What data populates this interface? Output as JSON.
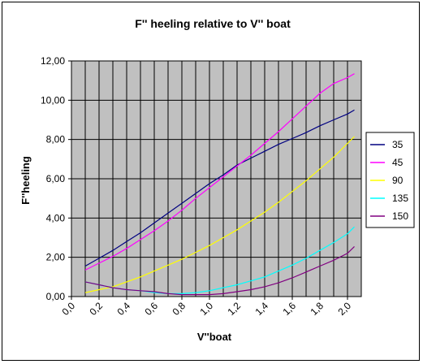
{
  "chart_data": {
    "type": "line",
    "title": "F'' heeling relative to V'' boat",
    "xlabel": "V''boat",
    "ylabel": "F''heeling",
    "xlim": [
      0.0,
      2.1
    ],
    "ylim": [
      0,
      12
    ],
    "x_ticks": [
      "0,0",
      "0,2",
      "0,4",
      "0,6",
      "0,8",
      "1,0",
      "1,2",
      "1,4",
      "1,6",
      "1,8",
      "2,0"
    ],
    "y_ticks": [
      "0,00",
      "2,00",
      "4,00",
      "6,00",
      "8,00",
      "10,00",
      "12,00"
    ],
    "grid": true,
    "plot_background": "#c0c0c0",
    "legend_placement": "right",
    "x": [
      0.1,
      0.2,
      0.3,
      0.4,
      0.5,
      0.6,
      0.7,
      0.8,
      0.9,
      1.0,
      1.1,
      1.2,
      1.3,
      1.4,
      1.5,
      1.6,
      1.7,
      1.8,
      1.9,
      2.0,
      2.05
    ],
    "series": [
      {
        "name": "35",
        "color": "#000080",
        "values": [
          1.55,
          1.95,
          2.35,
          2.8,
          3.25,
          3.75,
          4.25,
          4.75,
          5.25,
          5.75,
          6.2,
          6.7,
          7.05,
          7.4,
          7.75,
          8.05,
          8.35,
          8.7,
          9.0,
          9.3,
          9.5
        ]
      },
      {
        "name": "45",
        "color": "#ff00ff",
        "values": [
          1.35,
          1.7,
          2.05,
          2.45,
          2.9,
          3.35,
          3.85,
          4.4,
          5.0,
          5.55,
          6.1,
          6.65,
          7.2,
          7.8,
          8.4,
          9.05,
          9.7,
          10.35,
          10.85,
          11.15,
          11.35
        ]
      },
      {
        "name": "90",
        "color": "#ffff00",
        "values": [
          0.2,
          0.35,
          0.5,
          0.75,
          1.0,
          1.3,
          1.6,
          1.9,
          2.25,
          2.6,
          3.0,
          3.4,
          3.85,
          4.3,
          4.8,
          5.35,
          5.9,
          6.5,
          7.1,
          7.8,
          8.15
        ]
      },
      {
        "name": "135",
        "color": "#00ffff",
        "values": [
          0.75,
          0.6,
          0.45,
          0.35,
          0.3,
          0.2,
          0.15,
          0.15,
          0.2,
          0.3,
          0.45,
          0.6,
          0.8,
          1.0,
          1.3,
          1.6,
          1.95,
          2.35,
          2.75,
          3.2,
          3.55
        ]
      },
      {
        "name": "150",
        "color": "#800080",
        "values": [
          0.75,
          0.6,
          0.45,
          0.35,
          0.3,
          0.25,
          0.15,
          0.1,
          0.1,
          0.1,
          0.15,
          0.25,
          0.35,
          0.5,
          0.7,
          0.95,
          1.25,
          1.55,
          1.85,
          2.2,
          2.55
        ]
      }
    ]
  }
}
